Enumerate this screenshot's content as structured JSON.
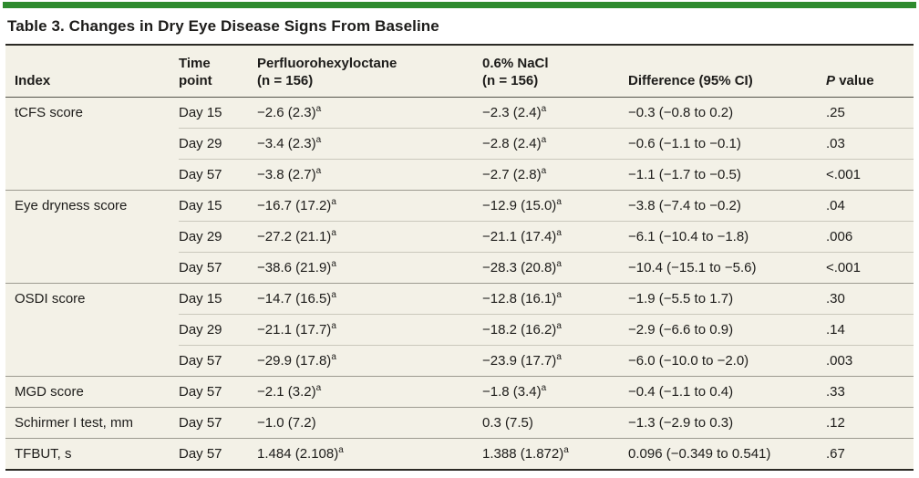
{
  "colors": {
    "accent_green": "#2f8b2f",
    "table_background": "#f3f1e7",
    "rule_dark": "#2b2a25"
  },
  "table": {
    "title": "Table 3. Changes in Dry Eye Disease Signs From Baseline",
    "footnote_marker": "a",
    "header": {
      "index": "Index",
      "time_point": "Time\npoint",
      "treatment": "Perfluorohexyloctane\n(n = 156)",
      "control": "0.6% NaCl\n(n = 156)",
      "difference": "Difference (95% CI)",
      "p_italic": "P",
      "p_rest": "value"
    },
    "rows": [
      {
        "group": "tCFS score",
        "group_start": true,
        "time_point": "Day 15",
        "treatment": "−2.6 (2.3)",
        "treatment_sup": "a",
        "control": "−2.3 (2.4)",
        "control_sup": "a",
        "difference": "−0.3 (−0.8 to 0.2)",
        "p_value": ".25"
      },
      {
        "group": "",
        "group_start": false,
        "time_point": "Day 29",
        "treatment": "−3.4 (2.3)",
        "treatment_sup": "a",
        "control": "−2.8 (2.4)",
        "control_sup": "a",
        "difference": "−0.6 (−1.1 to −0.1)",
        "p_value": ".03"
      },
      {
        "group": "",
        "group_start": false,
        "time_point": "Day 57",
        "treatment": "−3.8 (2.7)",
        "treatment_sup": "a",
        "control": "−2.7 (2.8)",
        "control_sup": "a",
        "difference": "−1.1 (−1.7 to −0.5)",
        "p_value": "<.001"
      },
      {
        "group": "Eye dryness score",
        "group_start": true,
        "time_point": "Day 15",
        "treatment": "−16.7 (17.2)",
        "treatment_sup": "a",
        "control": "−12.9 (15.0)",
        "control_sup": "a",
        "difference": "−3.8 (−7.4 to −0.2)",
        "p_value": ".04"
      },
      {
        "group": "",
        "group_start": false,
        "time_point": "Day 29",
        "treatment": "−27.2 (21.1)",
        "treatment_sup": "a",
        "control": "−21.1 (17.4)",
        "control_sup": "a",
        "difference": "−6.1 (−10.4 to −1.8)",
        "p_value": ".006"
      },
      {
        "group": "",
        "group_start": false,
        "time_point": "Day 57",
        "treatment": "−38.6 (21.9)",
        "treatment_sup": "a",
        "control": "−28.3 (20.8)",
        "control_sup": "a",
        "difference": "−10.4 (−15.1 to −5.6)",
        "p_value": "<.001"
      },
      {
        "group": "OSDI score",
        "group_start": true,
        "time_point": "Day 15",
        "treatment": "−14.7 (16.5)",
        "treatment_sup": "a",
        "control": "−12.8 (16.1)",
        "control_sup": "a",
        "difference": "−1.9 (−5.5 to 1.7)",
        "p_value": ".30"
      },
      {
        "group": "",
        "group_start": false,
        "time_point": "Day 29",
        "treatment": "−21.1 (17.7)",
        "treatment_sup": "a",
        "control": "−18.2 (16.2)",
        "control_sup": "a",
        "difference": "−2.9 (−6.6 to 0.9)",
        "p_value": ".14"
      },
      {
        "group": "",
        "group_start": false,
        "time_point": "Day 57",
        "treatment": "−29.9 (17.8)",
        "treatment_sup": "a",
        "control": "−23.9 (17.7)",
        "control_sup": "a",
        "difference": "−6.0 (−10.0 to −2.0)",
        "p_value": ".003"
      },
      {
        "group": "MGD score",
        "group_start": true,
        "time_point": "Day 57",
        "treatment": "−2.1 (3.2)",
        "treatment_sup": "a",
        "control": "−1.8 (3.4)",
        "control_sup": "a",
        "difference": "−0.4 (−1.1 to 0.4)",
        "p_value": ".33"
      },
      {
        "group": "Schirmer I test, mm",
        "group_start": true,
        "time_point": "Day 57",
        "treatment": "−1.0 (7.2)",
        "treatment_sup": "",
        "control": "0.3 (7.5)",
        "control_sup": "",
        "difference": "−1.3 (−2.9 to 0.3)",
        "p_value": ".12"
      },
      {
        "group": "TFBUT, s",
        "group_start": true,
        "time_point": "Day 57",
        "treatment": "1.484 (2.108)",
        "treatment_sup": "a",
        "control": "1.388 (1.872)",
        "control_sup": "a",
        "difference": "0.096 (−0.349 to 0.541)",
        "p_value": ".67"
      }
    ]
  }
}
